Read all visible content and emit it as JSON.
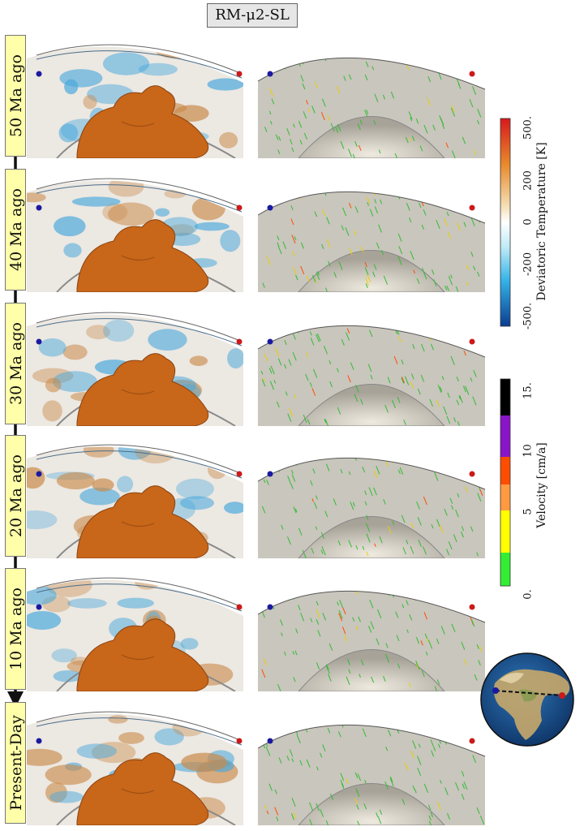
{
  "title": "RM-μ2-SL",
  "rows": [
    {
      "label": "50 Ma ago"
    },
    {
      "label": "40 Ma ago"
    },
    {
      "label": "30 Ma ago"
    },
    {
      "label": "20 Ma ago"
    },
    {
      "label": "10 Ma ago"
    },
    {
      "label": "Present-Day"
    }
  ],
  "temperature_colorbar": {
    "label": "Deviatoric Temperature [K]",
    "ticks": [
      "500.",
      "200",
      "0",
      "-200",
      "-500."
    ],
    "colors": [
      "#d7191c",
      "#e8892b",
      "#f5deb3",
      "#ffffff",
      "#7fd6f0",
      "#1f8fd6",
      "#0b3d91"
    ]
  },
  "velocity_colorbar": {
    "label": "Velocity [cm/a]",
    "ticks": [
      "15.",
      "10",
      "5",
      "0."
    ],
    "colors": [
      "#000000",
      "#8a14c8",
      "#ff4d00",
      "#ff9a40",
      "#ffff00",
      "#33ee33"
    ]
  },
  "colors": {
    "plume": "#c8661a",
    "panel_bg": "#c9c6bd",
    "marker_left": "#1a1aa0",
    "marker_right": "#cc1a1a"
  }
}
